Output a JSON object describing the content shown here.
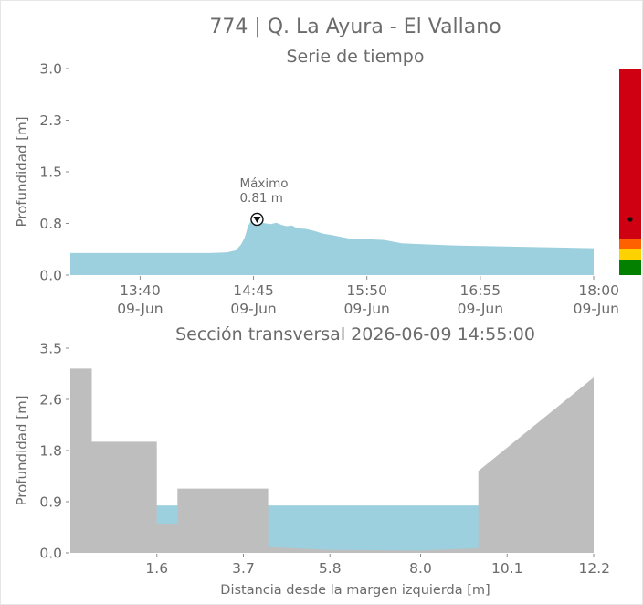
{
  "title": "774 | Q. La Ayura - El Vallano",
  "chart_data": [
    {
      "type": "area",
      "title": "Serie de tiempo",
      "ylabel": "Profundidad [m]",
      "xlabel": "",
      "ylim": [
        0,
        3.0
      ],
      "yticks": [
        "0.0",
        "0.8",
        "1.5",
        "2.3",
        "3.0"
      ],
      "xticks": [
        {
          "line1": "13:40",
          "line2": "09-Jun"
        },
        {
          "line1": "14:45",
          "line2": "09-Jun"
        },
        {
          "line1": "15:50",
          "line2": "09-Jun"
        },
        {
          "line1": "16:55",
          "line2": "09-Jun"
        },
        {
          "line1": "18:00",
          "line2": "09-Jun"
        }
      ],
      "xtick_minutes": [
        820,
        885,
        950,
        1015,
        1080
      ],
      "x_minutes": [
        780,
        800,
        820,
        840,
        860,
        870,
        875,
        878,
        880,
        882,
        884,
        886,
        888,
        890,
        892,
        895,
        898,
        901,
        904,
        907,
        910,
        915,
        920,
        925,
        930,
        940,
        950,
        960,
        970,
        980,
        1000,
        1020,
        1040,
        1060,
        1080
      ],
      "y": [
        0.32,
        0.32,
        0.32,
        0.32,
        0.32,
        0.33,
        0.36,
        0.45,
        0.55,
        0.72,
        0.8,
        0.79,
        0.77,
        0.76,
        0.75,
        0.74,
        0.76,
        0.73,
        0.71,
        0.72,
        0.68,
        0.67,
        0.64,
        0.6,
        0.58,
        0.53,
        0.52,
        0.51,
        0.46,
        0.45,
        0.43,
        0.42,
        0.41,
        0.4,
        0.39
      ],
      "annotation": {
        "label": "Máximo",
        "value": "0.81 m",
        "x_minute": 886,
        "y": 0.81
      },
      "fill_color": "#9dd0de",
      "alert_bar": {
        "segments": [
          {
            "from": 0.0,
            "to": 0.22,
            "color": "#048001"
          },
          {
            "from": 0.22,
            "to": 0.38,
            "color": "#fed200"
          },
          {
            "from": 0.38,
            "to": 0.52,
            "color": "#fe6200"
          },
          {
            "from": 0.52,
            "to": 3.0,
            "color": "#cf0012"
          }
        ],
        "marker_y": 0.81
      }
    },
    {
      "type": "area",
      "title": "Sección transversal 2026-06-09 14:55:00",
      "ylabel": "Profundidad [m]",
      "xlabel": "Distancia desde la margen izquierda [m]",
      "xlim": [
        -0.5,
        12.2
      ],
      "ylim": [
        0,
        3.5
      ],
      "xticks": [
        "1.6",
        "3.7",
        "5.8",
        "8.0",
        "10.1",
        "12.2"
      ],
      "xtick_values": [
        1.6,
        3.7,
        5.8,
        8.0,
        10.1,
        12.2
      ],
      "yticks": [
        "0.0",
        "0.9",
        "1.8",
        "2.6",
        "3.5"
      ],
      "water_level": 0.81,
      "ground_color": "#bebebe",
      "water_color": "#9dd0de",
      "bed_profile": {
        "x": [
          -0.5,
          0.02,
          0.02,
          1.6,
          1.6,
          2.1,
          2.1,
          4.3,
          4.3,
          5.8,
          8.0,
          9.4,
          9.4,
          12.2,
          12.2
        ],
        "y": [
          3.15,
          3.15,
          1.9,
          1.9,
          0.5,
          0.5,
          1.1,
          1.1,
          0.1,
          0.05,
          0.04,
          0.08,
          1.4,
          3.0,
          0.0
        ]
      }
    }
  ]
}
